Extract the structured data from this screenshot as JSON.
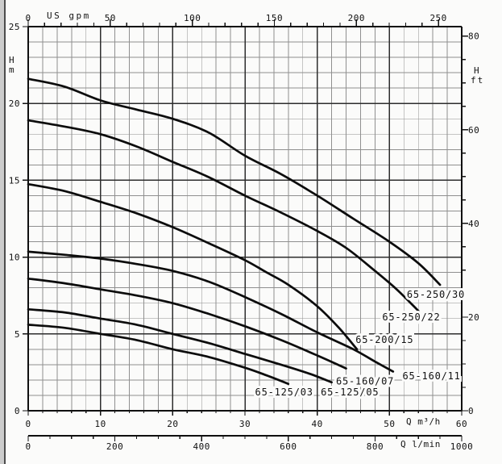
{
  "page": {
    "description": "Scanned pump performance curve chart, head H versus flow Q",
    "background": "#fbfbfa",
    "ink_color": "#111111",
    "grid_minor_color": "#8f8f8f",
    "grid_major_color": "#2d2d2d"
  },
  "chart_data": {
    "type": "line",
    "title": "",
    "xlabel": "Q m³/h",
    "ylabel": "H m",
    "xlim": [
      0,
      60
    ],
    "ylim": [
      0,
      25
    ],
    "grid": "on",
    "axes": {
      "left": {
        "label_lines": [
          "H",
          "m"
        ],
        "unit": "m",
        "ticks": [
          0,
          5,
          10,
          15,
          20,
          25
        ]
      },
      "right": {
        "label_lines": [
          "H",
          "ft"
        ],
        "unit": "ft",
        "ticks": [
          0,
          20,
          40,
          60,
          80
        ],
        "minor_step": 5
      },
      "top": {
        "unit_label": "US gpm",
        "unit": "US gpm",
        "ticks": [
          0,
          50,
          100,
          150,
          200,
          250
        ],
        "minor_step": 10
      },
      "bottom": {
        "unit_label": "Q m³/h",
        "unit": "m³/h",
        "ticks": [
          0,
          10,
          20,
          30,
          40,
          50,
          60
        ],
        "minor_step": 2
      },
      "bottom2": {
        "unit_label": "Q l/min",
        "unit": "l/min",
        "ticks": [
          0,
          200,
          400,
          600,
          800,
          1000
        ],
        "minor_step": 50
      }
    },
    "series": [
      {
        "name": "65-250/30",
        "points": [
          [
            0,
            21.6
          ],
          [
            5,
            21.1
          ],
          [
            10,
            20.2
          ],
          [
            15,
            19.6
          ],
          [
            20,
            19.0
          ],
          [
            25,
            18.1
          ],
          [
            30,
            16.6
          ],
          [
            35,
            15.4
          ],
          [
            40,
            14.0
          ],
          [
            45,
            12.5
          ],
          [
            50,
            11.0
          ],
          [
            54,
            9.6
          ],
          [
            57,
            8.2
          ]
        ],
        "label_at": [
          52.4,
          7.35
        ]
      },
      {
        "name": "65-250/22",
        "points": [
          [
            0,
            18.9
          ],
          [
            5,
            18.5
          ],
          [
            10,
            18.0
          ],
          [
            15,
            17.2
          ],
          [
            20,
            16.2
          ],
          [
            25,
            15.2
          ],
          [
            30,
            14.0
          ],
          [
            35,
            12.9
          ],
          [
            40,
            11.7
          ],
          [
            44,
            10.6
          ],
          [
            48,
            9.1
          ],
          [
            51,
            7.9
          ],
          [
            54,
            6.5
          ]
        ],
        "label_at": [
          49.0,
          5.88
        ]
      },
      {
        "name": "65-200/15",
        "points": [
          [
            0,
            14.75
          ],
          [
            5,
            14.3
          ],
          [
            10,
            13.6
          ],
          [
            15,
            12.85
          ],
          [
            20,
            11.95
          ],
          [
            25,
            10.9
          ],
          [
            30,
            9.8
          ],
          [
            33,
            9.0
          ],
          [
            36,
            8.2
          ],
          [
            40,
            6.8
          ],
          [
            43,
            5.4
          ],
          [
            45.5,
            4.0
          ]
        ],
        "label_at": [
          45.3,
          4.4
        ]
      },
      {
        "name": "65-160/11",
        "points": [
          [
            0,
            10.35
          ],
          [
            5,
            10.15
          ],
          [
            10,
            9.9
          ],
          [
            15,
            9.55
          ],
          [
            20,
            9.1
          ],
          [
            25,
            8.4
          ],
          [
            30,
            7.4
          ],
          [
            35,
            6.3
          ],
          [
            40,
            5.1
          ],
          [
            45,
            4.0
          ],
          [
            48,
            3.2
          ],
          [
            50.5,
            2.55
          ]
        ],
        "label_at": [
          51.8,
          2.05
        ]
      },
      {
        "name": "65-160/07",
        "points": [
          [
            0,
            8.6
          ],
          [
            5,
            8.3
          ],
          [
            10,
            7.9
          ],
          [
            15,
            7.5
          ],
          [
            20,
            7.0
          ],
          [
            25,
            6.3
          ],
          [
            30,
            5.5
          ],
          [
            35,
            4.6
          ],
          [
            40,
            3.6
          ],
          [
            44,
            2.75
          ]
        ],
        "label_at": [
          42.6,
          1.7
        ]
      },
      {
        "name": "65-125/05",
        "points": [
          [
            0,
            6.6
          ],
          [
            5,
            6.4
          ],
          [
            10,
            6.0
          ],
          [
            15,
            5.6
          ],
          [
            20,
            5.0
          ],
          [
            25,
            4.4
          ],
          [
            30,
            3.7
          ],
          [
            35,
            3.0
          ],
          [
            39,
            2.4
          ],
          [
            42,
            1.85
          ]
        ],
        "label_at": [
          40.5,
          1.0
        ]
      },
      {
        "name": "65-125/03",
        "points": [
          [
            0,
            5.6
          ],
          [
            5,
            5.4
          ],
          [
            10,
            5.0
          ],
          [
            15,
            4.6
          ],
          [
            20,
            4.0
          ],
          [
            25,
            3.5
          ],
          [
            30,
            2.8
          ],
          [
            33,
            2.3
          ],
          [
            36,
            1.75
          ]
        ],
        "label_at": [
          31.4,
          1.0
        ]
      }
    ]
  }
}
